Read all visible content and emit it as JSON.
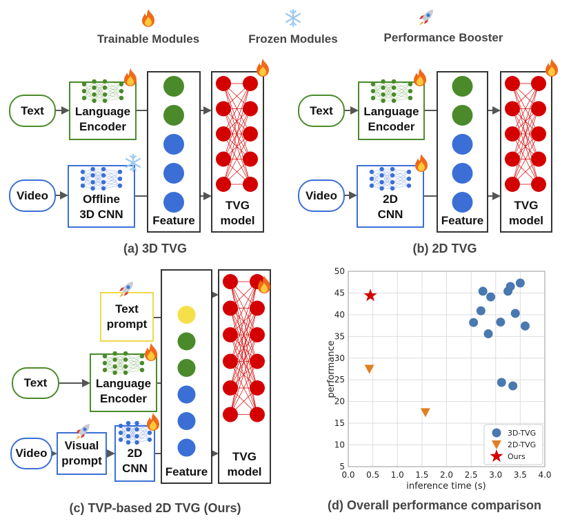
{
  "legend": {
    "trainable": "Trainable Modules",
    "frozen": "Frozen Modules",
    "booster": "Performance Booster",
    "icons": [
      "fire-icon",
      "snowflake-icon",
      "rocket-icon"
    ]
  },
  "panel_a": {
    "text": "Text",
    "video": "Video",
    "lang_enc": [
      "Language",
      "Encoder"
    ],
    "cnn": [
      "Offline",
      "3D CNN"
    ],
    "feature": "Feature",
    "tvg": [
      "TVG",
      "model"
    ],
    "caption": "(a) 3D TVG"
  },
  "panel_b": {
    "text": "Text",
    "video": "Video",
    "lang_enc": [
      "Language",
      "Encoder"
    ],
    "cnn": [
      "2D",
      "CNN"
    ],
    "feature": "Feature",
    "tvg": [
      "TVG",
      "model"
    ],
    "caption": "(b) 2D TVG"
  },
  "panel_c": {
    "text_prompt": [
      "Text",
      "prompt"
    ],
    "text": "Text",
    "video": "Video",
    "visual_prompt": [
      "Visual",
      "prompt"
    ],
    "lang_enc": [
      "Language",
      "Encoder"
    ],
    "cnn": [
      "2D",
      "CNN"
    ],
    "feature": "Feature",
    "tvg": [
      "TVG",
      "model"
    ],
    "caption": "(c) TVP-based 2D TVG (Ours)"
  },
  "panel_d": {
    "caption": "(d) Overall performance comparison"
  },
  "colors": {
    "text_green": "#4a8a2a",
    "video_blue": "#3b6fd6",
    "prompt_yellow": "#f5e04a",
    "tvg_red": "#d40000",
    "series_3d": "#4a78b0",
    "series_2d": "#e07f22",
    "series_ours": "#d40000"
  },
  "chart_data": {
    "type": "scatter",
    "xlabel": "inference time (s)",
    "ylabel": "performance",
    "xlim": [
      0,
      4
    ],
    "ylim": [
      5,
      50
    ],
    "xticks": [
      "0.0",
      "0.5",
      "1.0",
      "1.5",
      "2.0",
      "2.5",
      "3.0",
      "3.5",
      "4.0"
    ],
    "yticks": [
      "5",
      "10",
      "15",
      "20",
      "25",
      "30",
      "35",
      "40",
      "45",
      "50"
    ],
    "grid": true,
    "legend": "bottom-right",
    "series": [
      {
        "name": "3D-TVG",
        "marker": "circle",
        "points": [
          [
            2.55,
            38.2
          ],
          [
            2.7,
            40.9
          ],
          [
            2.74,
            45.4
          ],
          [
            2.85,
            35.6
          ],
          [
            2.9,
            44.1
          ],
          [
            3.1,
            38.3
          ],
          [
            3.12,
            24.4
          ],
          [
            3.25,
            45.4
          ],
          [
            3.3,
            46.5
          ],
          [
            3.35,
            23.6
          ],
          [
            3.4,
            40.3
          ],
          [
            3.5,
            47.3
          ],
          [
            3.6,
            37.4
          ]
        ]
      },
      {
        "name": "2D-TVG",
        "marker": "triangle-down",
        "points": [
          [
            0.43,
            27.5
          ],
          [
            1.57,
            17.5
          ]
        ]
      },
      {
        "name": "Ours",
        "marker": "star",
        "points": [
          [
            0.45,
            44.4
          ]
        ]
      }
    ]
  }
}
